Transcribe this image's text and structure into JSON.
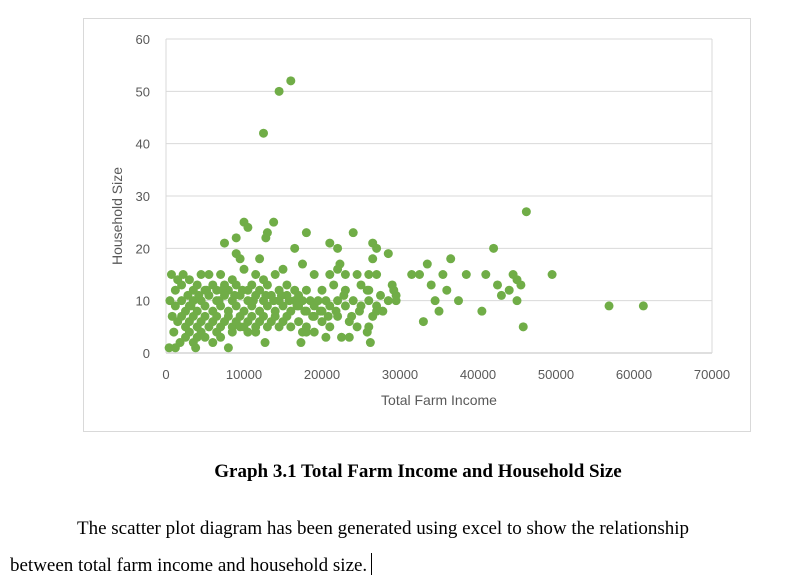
{
  "chart_data": {
    "type": "scatter",
    "title": "",
    "xlabel": "Total Farm Income",
    "ylabel": "Household Size",
    "xlim": [
      0,
      70000
    ],
    "ylim": [
      0,
      60
    ],
    "xticks": [
      0,
      10000,
      20000,
      30000,
      40000,
      50000,
      60000,
      70000
    ],
    "yticks": [
      0,
      10,
      20,
      30,
      40,
      50,
      60
    ],
    "grid": "horizontal",
    "legend": "none",
    "marker_color": "#70ad47",
    "points": [
      [
        12500,
        42
      ],
      [
        14500,
        50
      ],
      [
        16000,
        52
      ],
      [
        46200,
        27
      ],
      [
        10000,
        25
      ],
      [
        13800,
        25
      ],
      [
        10500,
        24
      ],
      [
        12800,
        22
      ],
      [
        9000,
        22
      ],
      [
        7500,
        21
      ],
      [
        21000,
        21
      ],
      [
        22000,
        20
      ],
      [
        26500,
        21
      ],
      [
        27000,
        20
      ],
      [
        24000,
        23
      ],
      [
        18000,
        23
      ],
      [
        16500,
        20
      ],
      [
        28500,
        19
      ],
      [
        42000,
        20
      ],
      [
        9000,
        19
      ],
      [
        12000,
        18
      ],
      [
        17500,
        17
      ],
      [
        22300,
        17
      ],
      [
        26500,
        18
      ],
      [
        36500,
        18
      ],
      [
        33500,
        17
      ],
      [
        13000,
        23
      ],
      [
        9500,
        18
      ],
      [
        700,
        15
      ],
      [
        1500,
        14
      ],
      [
        2200,
        15
      ],
      [
        3000,
        14
      ],
      [
        4500,
        15
      ],
      [
        5500,
        15
      ],
      [
        7000,
        15
      ],
      [
        8500,
        14
      ],
      [
        10000,
        16
      ],
      [
        11500,
        15
      ],
      [
        12500,
        14
      ],
      [
        14000,
        15
      ],
      [
        15000,
        16
      ],
      [
        19000,
        15
      ],
      [
        21000,
        15
      ],
      [
        22000,
        16
      ],
      [
        23000,
        15
      ],
      [
        24500,
        15
      ],
      [
        26000,
        15
      ],
      [
        27000,
        15
      ],
      [
        29000,
        13
      ],
      [
        31500,
        15
      ],
      [
        32500,
        15
      ],
      [
        35500,
        15
      ],
      [
        38500,
        15
      ],
      [
        41000,
        15
      ],
      [
        44500,
        15
      ],
      [
        49500,
        15
      ],
      [
        1200,
        12
      ],
      [
        2000,
        13
      ],
      [
        3500,
        12
      ],
      [
        4000,
        13
      ],
      [
        5000,
        12
      ],
      [
        6000,
        13
      ],
      [
        6500,
        12
      ],
      [
        7500,
        13
      ],
      [
        8000,
        12
      ],
      [
        9000,
        13
      ],
      [
        10500,
        12
      ],
      [
        11000,
        13
      ],
      [
        12000,
        12
      ],
      [
        13000,
        13
      ],
      [
        14500,
        12
      ],
      [
        15500,
        13
      ],
      [
        16500,
        12
      ],
      [
        17000,
        11
      ],
      [
        18000,
        12
      ],
      [
        20000,
        12
      ],
      [
        21500,
        13
      ],
      [
        23000,
        12
      ],
      [
        25000,
        13
      ],
      [
        26000,
        12
      ],
      [
        27500,
        11
      ],
      [
        29500,
        11
      ],
      [
        34000,
        13
      ],
      [
        36000,
        12
      ],
      [
        42500,
        13
      ],
      [
        43000,
        11
      ],
      [
        45000,
        14
      ],
      [
        45500,
        13
      ],
      [
        44000,
        12
      ],
      [
        500,
        10
      ],
      [
        1200,
        9
      ],
      [
        2000,
        10
      ],
      [
        2500,
        8
      ],
      [
        3000,
        9
      ],
      [
        3500,
        10
      ],
      [
        4000,
        8
      ],
      [
        4500,
        10
      ],
      [
        5000,
        9
      ],
      [
        5500,
        11
      ],
      [
        6000,
        8
      ],
      [
        6500,
        10
      ],
      [
        7000,
        9
      ],
      [
        7500,
        11
      ],
      [
        8000,
        8
      ],
      [
        8500,
        10
      ],
      [
        9000,
        9
      ],
      [
        9500,
        11
      ],
      [
        10000,
        8
      ],
      [
        10500,
        10
      ],
      [
        11000,
        9
      ],
      [
        11500,
        11
      ],
      [
        12000,
        8
      ],
      [
        12500,
        10
      ],
      [
        13000,
        9
      ],
      [
        13500,
        11
      ],
      [
        14000,
        8
      ],
      [
        14500,
        10
      ],
      [
        15000,
        9
      ],
      [
        15500,
        11
      ],
      [
        16000,
        8
      ],
      [
        16500,
        10
      ],
      [
        17000,
        9
      ],
      [
        17500,
        10
      ],
      [
        18000,
        8
      ],
      [
        18500,
        10
      ],
      [
        19000,
        9
      ],
      [
        19500,
        10
      ],
      [
        20000,
        8
      ],
      [
        20500,
        10
      ],
      [
        21000,
        9
      ],
      [
        22000,
        10
      ],
      [
        23000,
        9
      ],
      [
        24000,
        10
      ],
      [
        25000,
        9
      ],
      [
        26000,
        10
      ],
      [
        27000,
        9
      ],
      [
        28500,
        10
      ],
      [
        29500,
        10
      ],
      [
        34500,
        10
      ],
      [
        35000,
        8
      ],
      [
        37500,
        10
      ],
      [
        40500,
        8
      ],
      [
        45000,
        10
      ],
      [
        56800,
        9
      ],
      [
        61200,
        9
      ],
      [
        800,
        7
      ],
      [
        1500,
        6
      ],
      [
        2000,
        7
      ],
      [
        2500,
        5
      ],
      [
        3000,
        6
      ],
      [
        3500,
        7
      ],
      [
        4000,
        5
      ],
      [
        4500,
        6
      ],
      [
        5000,
        7
      ],
      [
        5500,
        5
      ],
      [
        6000,
        6
      ],
      [
        6500,
        7
      ],
      [
        7000,
        5
      ],
      [
        7500,
        6
      ],
      [
        8000,
        7
      ],
      [
        8500,
        5
      ],
      [
        9000,
        6
      ],
      [
        9500,
        7
      ],
      [
        10000,
        5
      ],
      [
        10500,
        6
      ],
      [
        11000,
        7
      ],
      [
        11500,
        5
      ],
      [
        12000,
        6
      ],
      [
        12500,
        7
      ],
      [
        13000,
        5
      ],
      [
        13500,
        6
      ],
      [
        14000,
        7
      ],
      [
        14500,
        5
      ],
      [
        15000,
        6
      ],
      [
        15500,
        7
      ],
      [
        16000,
        5
      ],
      [
        17000,
        6
      ],
      [
        17500,
        4
      ],
      [
        18000,
        5
      ],
      [
        19000,
        7
      ],
      [
        20000,
        6
      ],
      [
        21000,
        5
      ],
      [
        22000,
        7
      ],
      [
        23500,
        6
      ],
      [
        24500,
        5
      ],
      [
        26000,
        5
      ],
      [
        26500,
        7
      ],
      [
        27000,
        8
      ],
      [
        33000,
        6
      ],
      [
        45800,
        5
      ],
      [
        1000,
        4
      ],
      [
        1800,
        2
      ],
      [
        2500,
        3
      ],
      [
        3000,
        4
      ],
      [
        3500,
        2
      ],
      [
        4000,
        3
      ],
      [
        4500,
        4
      ],
      [
        5000,
        3
      ],
      [
        6000,
        2
      ],
      [
        6500,
        4
      ],
      [
        7000,
        3
      ],
      [
        8000,
        1
      ],
      [
        8500,
        4
      ],
      [
        9500,
        5
      ],
      [
        10500,
        4
      ],
      [
        11500,
        4
      ],
      [
        12700,
        2
      ],
      [
        17300,
        2
      ],
      [
        18000,
        4
      ],
      [
        19000,
        4
      ],
      [
        20500,
        3
      ],
      [
        22500,
        3
      ],
      [
        23500,
        3
      ],
      [
        26200,
        2
      ],
      [
        25800,
        4
      ],
      [
        400,
        1
      ],
      [
        1200,
        1
      ],
      [
        3800,
        1
      ],
      [
        3200,
        9
      ],
      [
        4200,
        11
      ],
      [
        5200,
        12
      ],
      [
        2800,
        11
      ],
      [
        6800,
        10
      ],
      [
        7200,
        12
      ],
      [
        8800,
        11
      ],
      [
        9800,
        12
      ],
      [
        11200,
        10
      ],
      [
        12800,
        11
      ],
      [
        13800,
        10
      ],
      [
        14800,
        11
      ],
      [
        15800,
        10
      ],
      [
        16800,
        9
      ],
      [
        17800,
        8
      ],
      [
        18800,
        7
      ],
      [
        19800,
        8
      ],
      [
        20800,
        7
      ],
      [
        21800,
        8
      ],
      [
        22800,
        11
      ],
      [
        23800,
        7
      ],
      [
        24800,
        8
      ],
      [
        25800,
        12
      ],
      [
        27800,
        8
      ],
      [
        29200,
        12
      ]
    ]
  },
  "caption": "Graph 3.1 Total Farm Income and Household Size",
  "paragraph": {
    "line1": "The scatter plot diagram has been generated using excel to show the relationship",
    "line2": "between total farm income and household size."
  }
}
